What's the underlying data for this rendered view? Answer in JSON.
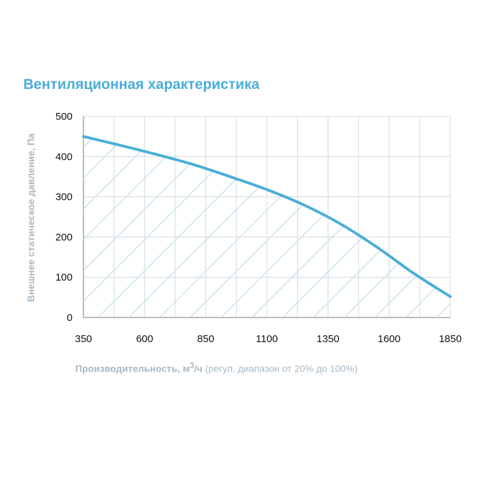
{
  "colors": {
    "accent": "#4aaed9",
    "hatch": "#bfe0ee",
    "grid": "#d4d8dc",
    "axis_label": "#a9b9c4"
  },
  "chart_data": {
    "type": "area",
    "title": "Вентиляционная характеристика",
    "xlabel_bold": "Производительность, м",
    "xlabel_sup": "3",
    "xlabel_unit": "/ч",
    "xlabel_note": " (регул. диапазон от 20% до 100%)",
    "ylabel": "Внешнее статическое давление, Па",
    "xlim": [
      350,
      1850
    ],
    "ylim": [
      0,
      500
    ],
    "x_ticks": [
      "350",
      "600",
      "850",
      "1100",
      "1350",
      "1600",
      "1850"
    ],
    "y_ticks": [
      "0",
      "100",
      "200",
      "300",
      "400",
      "500"
    ],
    "grid": true,
    "fill": "hatched",
    "series": [
      {
        "x": [
          350,
          500,
          650,
          800,
          950,
          1100,
          1250,
          1400,
          1550,
          1700,
          1850
        ],
        "y": [
          450,
          428,
          405,
          380,
          350,
          318,
          280,
          233,
          175,
          110,
          52
        ]
      }
    ]
  }
}
